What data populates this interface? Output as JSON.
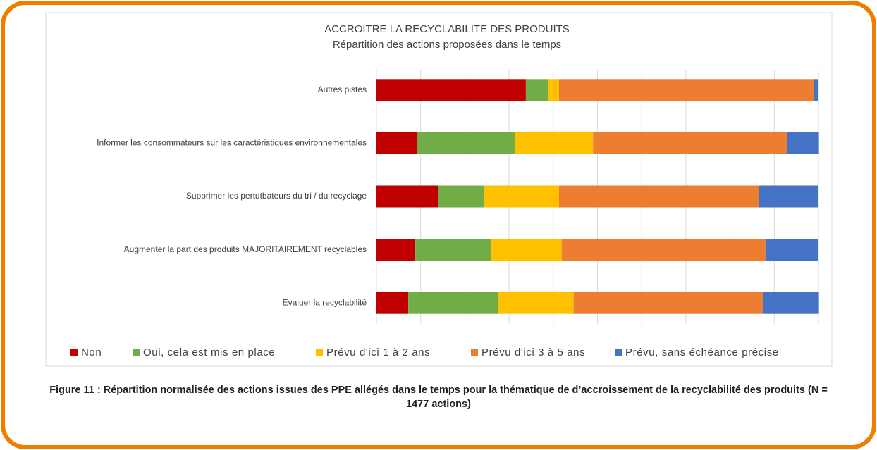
{
  "chart_data": {
    "type": "stacked-barh",
    "title": "ACCROITRE LA RECYCLABILITE DES PRODUITS",
    "subtitle": "Répartition des actions proposées dans le temps",
    "categories": [
      "Autres pistes",
      "Informer les consommateurs sur les caractéristiques environnementales",
      "Supprimer les pertutbateurs du tri / du recyclage",
      "Augmenter la part des produits MAJORITAIREMENT recyclables",
      "Evaluer la recyclabilité"
    ],
    "series": [
      {
        "name": "Non",
        "color": "#c00000",
        "values": [
          33.8,
          9.3,
          14.0,
          8.8,
          7.2
        ]
      },
      {
        "name": "Oui, cela est mis en place",
        "color": "#70ad47",
        "values": [
          5.1,
          22.0,
          10.4,
          17.2,
          20.3
        ]
      },
      {
        "name": "Prévu d'ici 1 à 2 ans",
        "color": "#ffc000",
        "values": [
          2.4,
          17.7,
          16.9,
          15.9,
          17.1
        ]
      },
      {
        "name": "Prévu d'ici 3 à 5 ans",
        "color": "#ed7d31",
        "values": [
          57.7,
          43.9,
          45.3,
          46.1,
          42.9
        ]
      },
      {
        "name": "Prévu, sans échéance précise",
        "color": "#4472c4",
        "values": [
          1.0,
          7.2,
          13.4,
          12.0,
          12.6
        ]
      }
    ],
    "xlim": [
      0,
      100
    ],
    "xticks": [
      0,
      10,
      20,
      30,
      40,
      50,
      60,
      70,
      80,
      90,
      100
    ],
    "grid": true,
    "legend": "bottom"
  },
  "caption": "Figure 11 : Répartition normalisée des actions issues des PPE allégés dans le temps pour la thématique de d’accroissement de la recyclabilité des produits (N = 1477 actions)"
}
